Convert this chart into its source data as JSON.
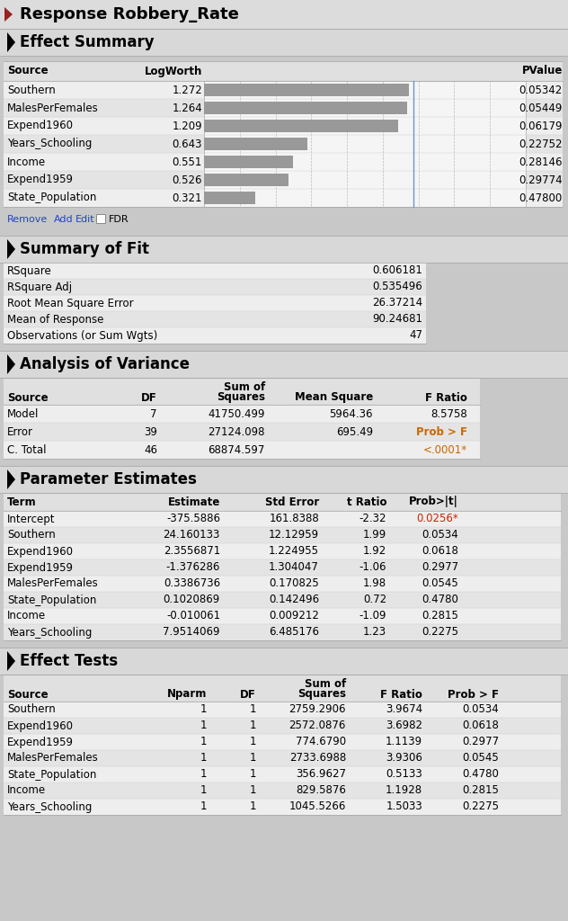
{
  "title": "Response Robbery_Rate",
  "effect_summary": {
    "rows": [
      {
        "source": "Southern",
        "logworth": 1.272,
        "pvalue": "0.05342"
      },
      {
        "source": "MalesPerFemales",
        "logworth": 1.264,
        "pvalue": "0.05449"
      },
      {
        "source": "Expend1960",
        "logworth": 1.209,
        "pvalue": "0.06179"
      },
      {
        "source": "Years_Schooling",
        "logworth": 0.643,
        "pvalue": "0.22752"
      },
      {
        "source": "Income",
        "logworth": 0.551,
        "pvalue": "0.28146"
      },
      {
        "source": "Expend1959",
        "logworth": 0.526,
        "pvalue": "0.29774"
      },
      {
        "source": "State_Population",
        "logworth": 0.321,
        "pvalue": "0.47800"
      }
    ],
    "bar_max": 2.0,
    "ref_line": 1.301
  },
  "summary_of_fit": {
    "rows": [
      [
        "RSquare",
        "0.606181"
      ],
      [
        "RSquare Adj",
        "0.535496"
      ],
      [
        "Root Mean Square Error",
        "26.37214"
      ],
      [
        "Mean of Response",
        "90.24681"
      ],
      [
        "Observations (or Sum Wgts)",
        "47"
      ]
    ]
  },
  "analysis_of_variance": {
    "rows": [
      [
        "Model",
        "7",
        "41750.499",
        "5964.36",
        "8.5758",
        false
      ],
      [
        "Error",
        "39",
        "27124.098",
        "695.49",
        "Prob > F",
        true
      ],
      [
        "C. Total",
        "46",
        "68874.597",
        "",
        "<.0001*",
        true
      ]
    ]
  },
  "parameter_estimates": {
    "rows": [
      [
        "Intercept",
        "-375.5886",
        "161.8388",
        "-2.32",
        "0.0256*",
        true
      ],
      [
        "Southern",
        "24.160133",
        "12.12959",
        "1.99",
        "0.0534",
        false
      ],
      [
        "Expend1960",
        "2.3556871",
        "1.224955",
        "1.92",
        "0.0618",
        false
      ],
      [
        "Expend1959",
        "-1.376286",
        "1.304047",
        "-1.06",
        "0.2977",
        false
      ],
      [
        "MalesPerFemales",
        "0.3386736",
        "0.170825",
        "1.98",
        "0.0545",
        false
      ],
      [
        "State_Population",
        "0.1020869",
        "0.142496",
        "0.72",
        "0.4780",
        false
      ],
      [
        "Income",
        "-0.010061",
        "0.009212",
        "-1.09",
        "0.2815",
        false
      ],
      [
        "Years_Schooling",
        "7.9514069",
        "6.485176",
        "1.23",
        "0.2275",
        false
      ]
    ]
  },
  "effect_tests": {
    "rows": [
      [
        "Southern",
        "1",
        "1",
        "2759.2906",
        "3.9674",
        "0.0534"
      ],
      [
        "Expend1960",
        "1",
        "1",
        "2572.0876",
        "3.6982",
        "0.0618"
      ],
      [
        "Expend1959",
        "1",
        "1",
        "774.6790",
        "1.1139",
        "0.2977"
      ],
      [
        "MalesPerFemales",
        "1",
        "1",
        "2733.6988",
        "3.9306",
        "0.0545"
      ],
      [
        "State_Population",
        "1",
        "1",
        "356.9627",
        "0.5133",
        "0.4780"
      ],
      [
        "Income",
        "1",
        "1",
        "829.5876",
        "1.1928",
        "0.2815"
      ],
      [
        "Years_Schooling",
        "1",
        "1",
        "1045.5266",
        "1.5033",
        "0.2275"
      ]
    ]
  },
  "colors": {
    "title_bg": "#dcdcdc",
    "section_bg": "#d8d8d8",
    "outer_bg": "#c8c8c8",
    "row_light": "#eeeeee",
    "row_dark": "#e4e4e4",
    "hdr_bg": "#e0e0e0",
    "border": "#aaaaaa",
    "row_sep": "#cccccc",
    "bar_color": "#999999",
    "bar_bg": "#f5f5f5",
    "ref_line": "#6699cc",
    "link_color": "#2244cc",
    "red_text": "#cc2200",
    "orange_text": "#cc6600"
  }
}
